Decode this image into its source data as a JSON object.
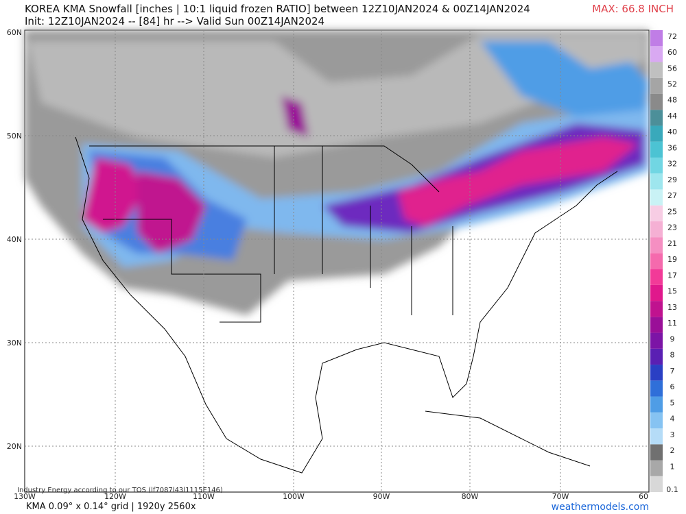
{
  "header": {
    "title": "KOREA KMA Snowfall [inches | 10:1 liquid frozen RATIO] between 12Z10JAN2024 & 00Z14JAN2024",
    "subtitle": "Init: 12Z10JAN2024 -- [84] hr --> Valid Sun 00Z14JAN2024",
    "max": "MAX: 66.8 INCH"
  },
  "lat_labels": [
    "60N",
    "50N",
    "40N",
    "30N",
    "20N"
  ],
  "lon_labels": [
    "130W",
    "120W",
    "110W",
    "100W",
    "90W",
    "80W",
    "70W",
    "60"
  ],
  "colorbar": {
    "labels": [
      "0.1",
      "1",
      "2",
      "3",
      "4",
      "5",
      "6",
      "7",
      "8",
      "9",
      "11",
      "13",
      "15",
      "17",
      "19",
      "21",
      "23",
      "25",
      "27",
      "29",
      "32",
      "36",
      "40",
      "44",
      "48",
      "52",
      "56",
      "60",
      "72"
    ],
    "colors": [
      "#d8d8d8",
      "#a8a8a8",
      "#707070",
      "#b5dcf7",
      "#86c3f2",
      "#4f9de6",
      "#2f6fd9",
      "#2a3fc4",
      "#5a1fb3",
      "#7c14a6",
      "#9a0f98",
      "#c0128f",
      "#e0188c",
      "#f23a98",
      "#f56aad",
      "#f58fc2",
      "#f5b0d4",
      "#f7cde4",
      "#c9f2f5",
      "#9ee6ee",
      "#71d6e3",
      "#4cc3d3",
      "#39a9bb",
      "#4c8f99",
      "#8a8a8a",
      "#a5a5a5",
      "#c0c0c0",
      "#d9a9f2",
      "#c07de6"
    ]
  },
  "footer": {
    "left": "KMA 0.09° x 0.14° grid | 1920y 2560x",
    "right": "weathermodels.com",
    "copyright": "Industry Energy according to our TOS (lf7087l43l1115E146)"
  }
}
